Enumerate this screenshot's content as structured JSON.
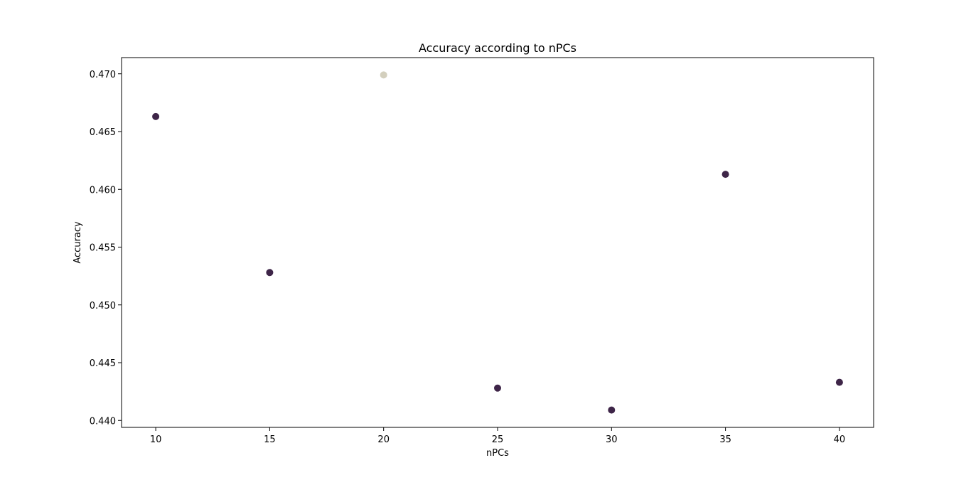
{
  "chart_data": {
    "type": "scatter",
    "title": "Accuracy according to nPCs",
    "xlabel": "nPCs",
    "ylabel": "Accuracy",
    "xlim": [
      8.5,
      41.5
    ],
    "ylim": [
      0.4394,
      0.4714
    ],
    "xticks": [
      10,
      15,
      20,
      25,
      30,
      35,
      40
    ],
    "yticks": [
      0.44,
      0.445,
      0.45,
      0.455,
      0.46,
      0.465,
      0.47
    ],
    "ytick_labels": [
      "0.440",
      "0.445",
      "0.450",
      "0.455",
      "0.460",
      "0.465",
      "0.470"
    ],
    "grid": false,
    "points": [
      {
        "x": 10,
        "y": 0.4663,
        "color": "#3e2548"
      },
      {
        "x": 15,
        "y": 0.4528,
        "color": "#3e2548"
      },
      {
        "x": 20,
        "y": 0.4699,
        "color": "#d3cfbd"
      },
      {
        "x": 25,
        "y": 0.4428,
        "color": "#3e2548"
      },
      {
        "x": 30,
        "y": 0.4409,
        "color": "#3e2548"
      },
      {
        "x": 35,
        "y": 0.4613,
        "color": "#3e2548"
      },
      {
        "x": 40,
        "y": 0.4433,
        "color": "#3e2548"
      }
    ]
  }
}
